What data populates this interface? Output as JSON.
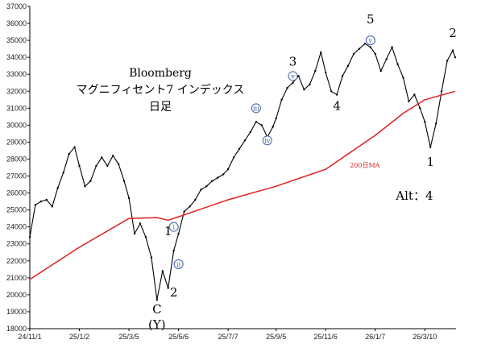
{
  "chart_data": {
    "type": "line",
    "title_lines": [
      "Bloomberg",
      "マグニフィセント7 インデックス",
      "日足"
    ],
    "xlabel": "",
    "ylabel": "",
    "x_ticks": [
      "24/11/1",
      "25/1/2",
      "25/3/5",
      "25/5/6",
      "25/7/7",
      "25/9/5",
      "25/11/6",
      "26/1/7",
      "26/3/10"
    ],
    "ylim": [
      18000,
      37000
    ],
    "y_ticks": [
      18000,
      19000,
      20000,
      21000,
      22000,
      23000,
      24000,
      25000,
      26000,
      27000,
      28000,
      29000,
      30000,
      31000,
      32000,
      33000,
      34000,
      35000,
      36000,
      37000
    ],
    "grid": false,
    "series": [
      {
        "kind": "price",
        "color": "#000000",
        "points": [
          [
            "24/11/1",
            23400
          ],
          [
            "24/11/8",
            25300
          ],
          [
            "24/11/15",
            25500
          ],
          [
            "24/11/22",
            25600
          ],
          [
            "24/11/29",
            25200
          ],
          [
            "24/12/6",
            26300
          ],
          [
            "24/12/13",
            27200
          ],
          [
            "24/12/20",
            28300
          ],
          [
            "24/12/27",
            28700
          ],
          [
            "25/1/2",
            27600
          ],
          [
            "25/1/9",
            26400
          ],
          [
            "25/1/16",
            26700
          ],
          [
            "25/1/23",
            27600
          ],
          [
            "25/1/30",
            28100
          ],
          [
            "25/2/6",
            27600
          ],
          [
            "25/2/13",
            28200
          ],
          [
            "25/2/20",
            27700
          ],
          [
            "25/2/27",
            26700
          ],
          [
            "25/3/5",
            25700
          ],
          [
            "25/3/12",
            23600
          ],
          [
            "25/3/19",
            24200
          ],
          [
            "25/3/26",
            23400
          ],
          [
            "25/4/2",
            22200
          ],
          [
            "25/4/9",
            19700
          ],
          [
            "25/4/16",
            21400
          ],
          [
            "25/4/23",
            20400
          ],
          [
            "25/4/30",
            22600
          ],
          [
            "25/5/6",
            23600
          ],
          [
            "25/5/13",
            24900
          ],
          [
            "25/5/20",
            25200
          ],
          [
            "25/5/27",
            25600
          ],
          [
            "25/6/3",
            26200
          ],
          [
            "25/6/10",
            26400
          ],
          [
            "25/6/17",
            26700
          ],
          [
            "25/6/24",
            26900
          ],
          [
            "25/7/1",
            27100
          ],
          [
            "25/7/7",
            27400
          ],
          [
            "25/7/14",
            28100
          ],
          [
            "25/7/21",
            28600
          ],
          [
            "25/7/28",
            29100
          ],
          [
            "25/8/4",
            29600
          ],
          [
            "25/8/11",
            30200
          ],
          [
            "25/8/18",
            30000
          ],
          [
            "25/8/25",
            29300
          ],
          [
            "25/9/1",
            29900
          ],
          [
            "25/9/5",
            30400
          ],
          [
            "25/9/12",
            31500
          ],
          [
            "25/9/19",
            32200
          ],
          [
            "25/9/26",
            32500
          ],
          [
            "25/10/3",
            32900
          ],
          [
            "25/10/10",
            32100
          ],
          [
            "25/10/17",
            32400
          ],
          [
            "25/10/24",
            33200
          ],
          [
            "25/10/31",
            34300
          ],
          [
            "25/11/6",
            33100
          ],
          [
            "25/11/13",
            32000
          ],
          [
            "25/11/20",
            31800
          ],
          [
            "25/11/27",
            32900
          ],
          [
            "25/12/4",
            33500
          ],
          [
            "25/12/11",
            34200
          ],
          [
            "25/12/18",
            34500
          ],
          [
            "25/12/25",
            34800
          ],
          [
            "26/1/1",
            34600
          ],
          [
            "26/1/7",
            34200
          ],
          [
            "26/1/14",
            33200
          ],
          [
            "26/1/21",
            33900
          ],
          [
            "26/1/28",
            34600
          ],
          [
            "26/2/4",
            33600
          ],
          [
            "26/2/11",
            32800
          ],
          [
            "26/2/18",
            31400
          ],
          [
            "26/2/25",
            31800
          ],
          [
            "26/3/4",
            31000
          ],
          [
            "26/3/10",
            30200
          ],
          [
            "26/3/17",
            28700
          ],
          [
            "26/3/24",
            30100
          ],
          [
            "26/3/31",
            32000
          ],
          [
            "26/4/7",
            33800
          ],
          [
            "26/4/14",
            34400
          ],
          [
            "26/4/17",
            34000
          ]
        ]
      },
      {
        "name": "200日MA",
        "color": "#e02020",
        "points": [
          [
            "24/11/1",
            20900
          ],
          [
            "25/1/2",
            22800
          ],
          [
            "25/3/5",
            24500
          ],
          [
            "25/4/9",
            24550
          ],
          [
            "25/4/23",
            24400
          ],
          [
            "25/5/6",
            24600
          ],
          [
            "25/7/7",
            25600
          ],
          [
            "25/9/5",
            26400
          ],
          [
            "25/11/6",
            27400
          ],
          [
            "26/1/7",
            29400
          ],
          [
            "26/2/11",
            30700
          ],
          [
            "26/3/10",
            31500
          ],
          [
            "26/4/17",
            32000
          ]
        ]
      }
    ],
    "annotations": [
      {
        "text": "5",
        "x": "26/1/1",
        "y": 36000
      },
      {
        "text": "2",
        "x": "26/4/14",
        "y": 35200
      },
      {
        "text": "3",
        "x": "25/9/26",
        "y": 33500
      },
      {
        "text": "4",
        "x": "25/11/20",
        "y": 30900
      },
      {
        "text": "1",
        "x": "26/3/17",
        "y": 27600
      },
      {
        "text": "1",
        "x": "25/4/23",
        "y": 23500
      },
      {
        "text": "2",
        "x": "25/4/30",
        "y": 19900
      },
      {
        "text": "C",
        "x": "25/4/9",
        "y": 18900
      },
      {
        "text": "(Y)",
        "x": "25/4/9",
        "y": 18000
      },
      {
        "text": "Alt：4",
        "x": "26/2/25",
        "y": 25600
      },
      {
        "text": "200日MA",
        "x": "25/12/25",
        "y": 27500,
        "color": "#e02020"
      }
    ],
    "circled_labels": [
      {
        "text": "ⅴ",
        "x": "26/1/1",
        "y": 35000
      },
      {
        "text": "ⅲ",
        "x": "25/8/11",
        "y": 31000
      },
      {
        "text": "ⅴ",
        "x": "25/9/26",
        "y": 32900
      },
      {
        "text": "ⅳ",
        "x": "25/8/25",
        "y": 29100
      },
      {
        "text": "ⅰ",
        "x": "25/4/30",
        "y": 24000
      },
      {
        "text": "ⅱ",
        "x": "25/5/6",
        "y": 21800
      }
    ]
  }
}
